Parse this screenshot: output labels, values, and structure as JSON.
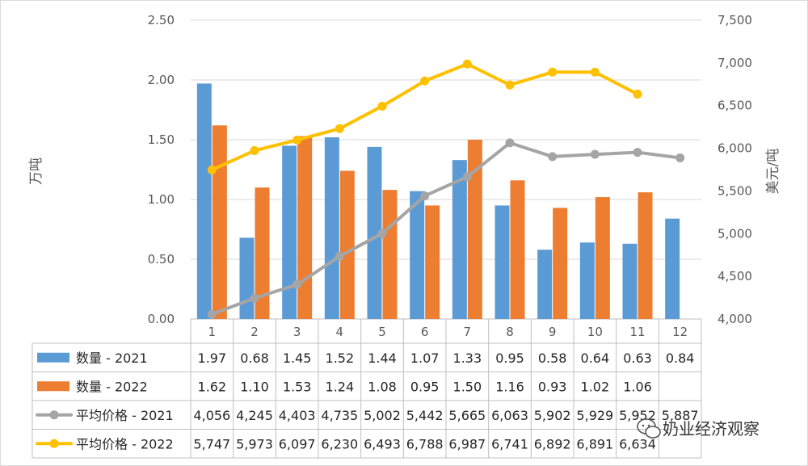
{
  "chart_data": {
    "type": "bar+line",
    "categories": [
      "1",
      "2",
      "3",
      "4",
      "5",
      "6",
      "7",
      "8",
      "9",
      "10",
      "11",
      "12"
    ],
    "ylabel_left": "万吨",
    "ylabel_right": "美元/吨",
    "ylim_left": [
      0,
      2.5
    ],
    "yticks_left": [
      "0.00",
      "0.50",
      "1.00",
      "1.50",
      "2.00",
      "2.50"
    ],
    "ylim_right": [
      4000,
      7500
    ],
    "yticks_right": [
      "4,000",
      "4,500",
      "5,000",
      "5,500",
      "6,000",
      "6,500",
      "7,000",
      "7,500"
    ],
    "grid": true,
    "series": [
      {
        "name": "数量 - 2021",
        "kind": "bar",
        "axis": "left",
        "color": "#5B9BD5",
        "values": [
          1.97,
          0.68,
          1.45,
          1.52,
          1.44,
          1.07,
          1.33,
          0.95,
          0.58,
          0.64,
          0.63,
          0.84
        ],
        "labels": [
          "1.97",
          "0.68",
          "1.45",
          "1.52",
          "1.44",
          "1.07",
          "1.33",
          "0.95",
          "0.58",
          "0.64",
          "0.63",
          "0.84"
        ]
      },
      {
        "name": "数量 - 2022",
        "kind": "bar",
        "axis": "left",
        "color": "#ED7D31",
        "values": [
          1.62,
          1.1,
          1.53,
          1.24,
          1.08,
          0.95,
          1.5,
          1.16,
          0.93,
          1.02,
          1.06,
          null
        ],
        "labels": [
          "1.62",
          "1.10",
          "1.53",
          "1.24",
          "1.08",
          "0.95",
          "1.50",
          "1.16",
          "0.93",
          "1.02",
          "1.06",
          ""
        ]
      },
      {
        "name": "平均价格 - 2021",
        "kind": "line",
        "axis": "right",
        "color": "#A5A5A5",
        "values": [
          4056,
          4245,
          4403,
          4735,
          5002,
          5442,
          5665,
          6063,
          5902,
          5929,
          5952,
          5887
        ],
        "labels": [
          "4,056",
          "4,245",
          "4,403",
          "4,735",
          "5,002",
          "5,442",
          "5,665",
          "6,063",
          "5,902",
          "5,929",
          "5,952",
          "5,887"
        ]
      },
      {
        "name": "平均价格 - 2022",
        "kind": "line",
        "axis": "right",
        "color": "#FFC000",
        "values": [
          5747,
          5973,
          6097,
          6230,
          6493,
          6788,
          6987,
          6741,
          6892,
          6891,
          6634,
          null
        ],
        "labels": [
          "5,747",
          "5,973",
          "6,097",
          "6,230",
          "6,493",
          "6,788",
          "6,987",
          "6,741",
          "6,892",
          "6,891",
          "6,634",
          ""
        ]
      }
    ]
  },
  "watermark": {
    "text": "奶业经济观察",
    "icon": "wechat-icon"
  },
  "colors": {
    "grid": "#D9D9D9",
    "table_border": "#BFBFBF"
  }
}
